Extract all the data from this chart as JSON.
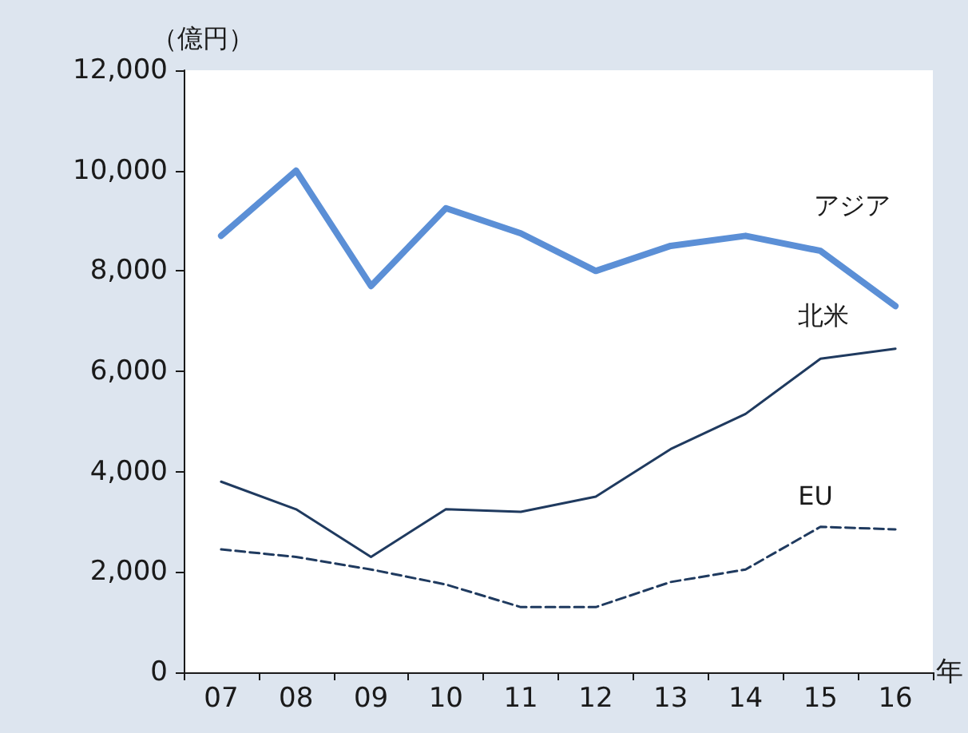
{
  "chart_data": {
    "type": "line",
    "ylabel": "（億円）",
    "xlabel": "年",
    "categories": [
      "07",
      "08",
      "09",
      "10",
      "11",
      "12",
      "13",
      "14",
      "15",
      "16"
    ],
    "series": [
      {
        "name": "アジア",
        "color": "#5b8fd6",
        "values": [
          8700,
          10000,
          7700,
          9250,
          8750,
          8000,
          8500,
          8700,
          8400,
          7300
        ]
      },
      {
        "name": "北米",
        "color": "#1f3a5f",
        "values": [
          3800,
          3250,
          2300,
          3250,
          3200,
          3500,
          4450,
          5150,
          6250,
          6450
        ]
      },
      {
        "name": "EU",
        "color": "#1f3a5f",
        "line_style": "dashed",
        "values": [
          2450,
          2300,
          2050,
          1750,
          1300,
          1300,
          1800,
          2050,
          2900,
          2850
        ]
      }
    ],
    "ylim": [
      0,
      12000
    ],
    "yticks": [
      {
        "value": 0,
        "label": "0"
      },
      {
        "value": 2000,
        "label": "2,000"
      },
      {
        "value": 4000,
        "label": "4,000"
      },
      {
        "value": 6000,
        "label": "6,000"
      },
      {
        "value": 8000,
        "label": "8,000"
      },
      {
        "value": 10000,
        "label": "10,000"
      },
      {
        "value": 12000,
        "label": "12,000"
      }
    ],
    "grid": false,
    "legend": false,
    "marker": "none"
  }
}
